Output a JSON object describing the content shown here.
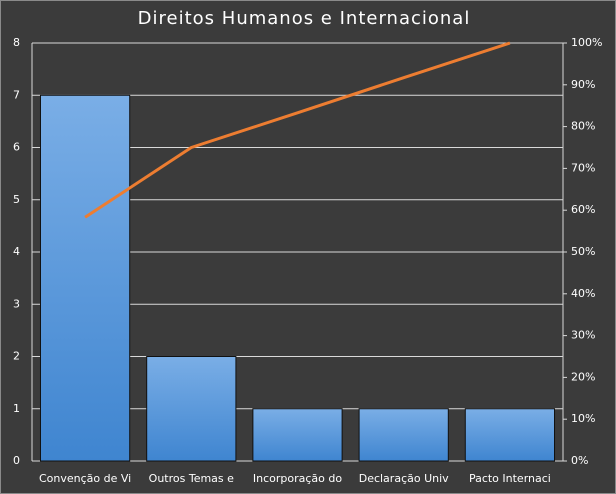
{
  "chart_data": {
    "type": "pareto",
    "title": "Direitos Humanos e Internacional",
    "categories": [
      "Convenção de Vi",
      "Outros Temas e",
      "Incorporação do",
      "Declaração Univ",
      "Pacto Internaci"
    ],
    "series": [
      {
        "type": "bar",
        "color": "#4a8fd6",
        "values": [
          7,
          2,
          1,
          1,
          1
        ]
      },
      {
        "type": "line",
        "color": "#ed7d31",
        "axis": "y2",
        "values": [
          58.3,
          75,
          83.3,
          91.7,
          100
        ]
      }
    ],
    "ylim": [
      0,
      8
    ],
    "yticks": [
      0,
      1,
      2,
      3,
      4,
      5,
      6,
      7,
      8
    ],
    "y2lim": [
      0,
      100
    ],
    "y2ticks": [
      {
        "value": 0,
        "label": "0%"
      },
      {
        "value": 10,
        "label": "10%"
      },
      {
        "value": 20,
        "label": "20%"
      },
      {
        "value": 30,
        "label": "30%"
      },
      {
        "value": 40,
        "label": "40%"
      },
      {
        "value": 50,
        "label": "50%"
      },
      {
        "value": 60,
        "label": "60%"
      },
      {
        "value": 70,
        "label": "70%"
      },
      {
        "value": 80,
        "label": "80%"
      },
      {
        "value": 90,
        "label": "90%"
      },
      {
        "value": 100,
        "label": "100%"
      }
    ],
    "grid": true
  }
}
